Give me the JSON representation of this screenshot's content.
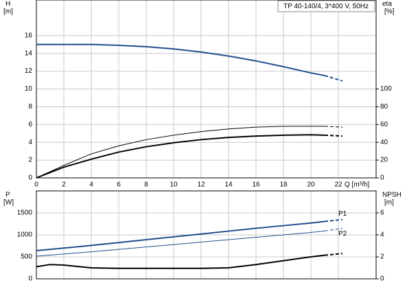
{
  "chart_data": [
    {
      "type": "line",
      "title": "TP 40-140/4, 3*400 V, 50Hz",
      "x_label": "Q [m³/h]",
      "y_label": "H",
      "y_unit": "[m]",
      "y2_label": "eta",
      "y2_unit": "[%]",
      "x": [
        0,
        1,
        2,
        4,
        6,
        8,
        10,
        12,
        14,
        16,
        18,
        20,
        21,
        22.3
      ],
      "series": [
        {
          "color": "#1f4e8c",
          "width": 2,
          "values": [
            15,
            15,
            15,
            15,
            14.9,
            14.75,
            14.5,
            14.15,
            13.7,
            13.15,
            12.5,
            11.8,
            11.5,
            10.9
          ]
        },
        {
          "color": "#000000",
          "width": 1,
          "axis": "y2",
          "values": [
            0,
            7,
            14,
            27,
            36,
            43,
            48,
            52,
            55,
            57,
            58,
            58,
            58,
            57
          ]
        },
        {
          "color": "#000000",
          "width": 2,
          "axis": "y2",
          "values": [
            0,
            6,
            12,
            21,
            29,
            35,
            39.5,
            43,
            45.5,
            47,
            48,
            48.5,
            48,
            47
          ]
        }
      ],
      "dash_from_x": 21,
      "xlim": [
        0,
        24.75
      ],
      "ylim": [
        0,
        20
      ],
      "y2lim": [
        0,
        200
      ],
      "xticks": [
        0,
        2,
        4,
        6,
        8,
        10,
        12,
        14,
        16,
        18,
        20,
        22
      ],
      "yticks": [
        0,
        2,
        4,
        6,
        8,
        10,
        12,
        14,
        16
      ],
      "y2ticks": [
        0,
        20,
        40,
        60,
        80,
        100
      ],
      "grid": true
    },
    {
      "type": "line",
      "y_label": "P",
      "y_unit": "[W]",
      "y2_label": "NPSH",
      "y2_unit": "[m]",
      "x": [
        0,
        1,
        2,
        4,
        6,
        8,
        10,
        12,
        14,
        16,
        18,
        20,
        21,
        22.3
      ],
      "series": [
        {
          "name": "P1",
          "color": "#1f4e8c",
          "width": 2,
          "values": [
            640,
            670,
            700,
            760,
            825,
            890,
            955,
            1020,
            1085,
            1150,
            1210,
            1270,
            1305,
            1350
          ]
        },
        {
          "name": "P2",
          "color": "#1f4e8c",
          "width": 1,
          "values": [
            515,
            540,
            565,
            615,
            670,
            725,
            780,
            835,
            890,
            945,
            1000,
            1055,
            1090,
            1150
          ]
        },
        {
          "color": "#000000",
          "width": 2,
          "axis": "y2",
          "values": [
            1.1,
            1.3,
            1.25,
            1.0,
            0.95,
            0.95,
            0.95,
            0.95,
            1.0,
            1.3,
            1.65,
            2.0,
            2.15,
            2.3
          ]
        }
      ],
      "dash_from_x": 21,
      "xlim": [
        0,
        24.75
      ],
      "ylim": [
        0,
        2000
      ],
      "y2lim": [
        0,
        8
      ],
      "yticks": [
        0,
        500,
        1000,
        1500
      ],
      "y2ticks": [
        0,
        2,
        4,
        6
      ],
      "grid": true
    }
  ]
}
